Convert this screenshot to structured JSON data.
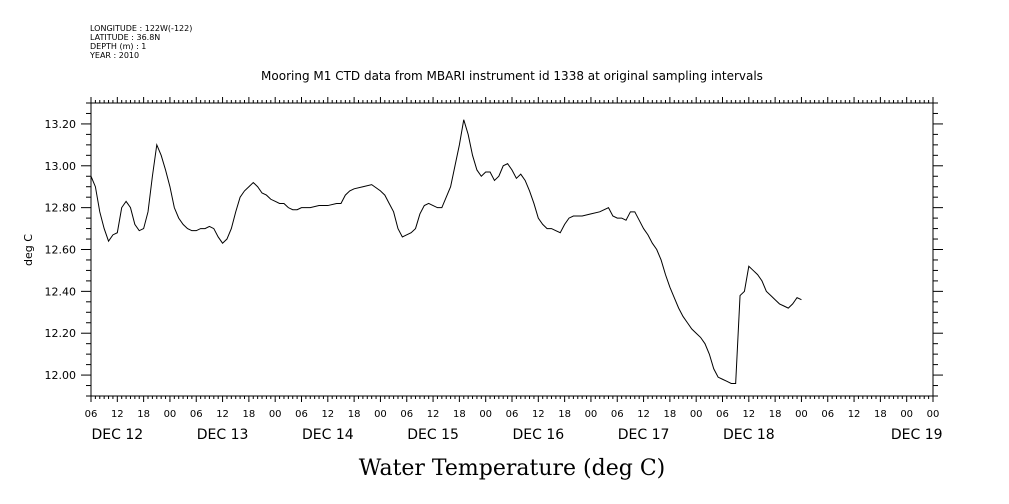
{
  "meta": {
    "longitude": "LONGITUDE : 122W(-122)",
    "latitude": "LATITUDE : 36.8N",
    "depth": "DEPTH (m) : 1",
    "year": "YEAR : 2010"
  },
  "chart_data": {
    "type": "line",
    "title": "Mooring M1 CTD data from MBARI instrument id 1338 at original sampling intervals",
    "xlabel": "Water Temperature (deg C)",
    "ylabel": "deg C",
    "ylim": [
      11.9,
      13.3
    ],
    "yticks": [
      "12.00",
      "12.20",
      "12.40",
      "12.60",
      "12.80",
      "13.00",
      "13.20"
    ],
    "xlim_hours": [
      6,
      198
    ],
    "hour_ticks": [
      "06",
      "12",
      "18",
      "00",
      "06",
      "12",
      "18",
      "00",
      "06",
      "12",
      "18",
      "00",
      "06",
      "12",
      "18",
      "00",
      "06",
      "12",
      "18",
      "00",
      "06",
      "12",
      "18",
      "00",
      "06",
      "12",
      "18",
      "00",
      "06",
      "12",
      "18",
      "00",
      "00"
    ],
    "day_labels": [
      "DEC 12",
      "DEC 13",
      "DEC 14",
      "DEC 15",
      "DEC 16",
      "DEC 17",
      "DEC 18",
      "DEC 19"
    ],
    "grid": false,
    "series": [
      {
        "points": [
          [
            6,
            12.95
          ],
          [
            7,
            12.9
          ],
          [
            8,
            12.78
          ],
          [
            9,
            12.7
          ],
          [
            10,
            12.64
          ],
          [
            11,
            12.67
          ],
          [
            12,
            12.68
          ],
          [
            13,
            12.8
          ],
          [
            14,
            12.83
          ],
          [
            15,
            12.8
          ],
          [
            16,
            12.72
          ],
          [
            17,
            12.69
          ],
          [
            18,
            12.7
          ],
          [
            19,
            12.78
          ],
          [
            20,
            12.95
          ],
          [
            21,
            13.1
          ],
          [
            22,
            13.05
          ],
          [
            23,
            12.98
          ],
          [
            24,
            12.9
          ],
          [
            25,
            12.8
          ],
          [
            26,
            12.75
          ],
          [
            27,
            12.72
          ],
          [
            28,
            12.7
          ],
          [
            29,
            12.69
          ],
          [
            30,
            12.69
          ],
          [
            31,
            12.7
          ],
          [
            32,
            12.7
          ],
          [
            33,
            12.71
          ],
          [
            34,
            12.7
          ],
          [
            35,
            12.66
          ],
          [
            36,
            12.63
          ],
          [
            37,
            12.65
          ],
          [
            38,
            12.7
          ],
          [
            39,
            12.78
          ],
          [
            40,
            12.85
          ],
          [
            41,
            12.88
          ],
          [
            42,
            12.9
          ],
          [
            43,
            12.92
          ],
          [
            44,
            12.9
          ],
          [
            45,
            12.87
          ],
          [
            46,
            12.86
          ],
          [
            47,
            12.84
          ],
          [
            48,
            12.83
          ],
          [
            49,
            12.82
          ],
          [
            50,
            12.82
          ],
          [
            51,
            12.8
          ],
          [
            52,
            12.79
          ],
          [
            53,
            12.79
          ],
          [
            54,
            12.8
          ],
          [
            56,
            12.8
          ],
          [
            58,
            12.81
          ],
          [
            60,
            12.81
          ],
          [
            62,
            12.82
          ],
          [
            63,
            12.82
          ],
          [
            64,
            12.86
          ],
          [
            65,
            12.88
          ],
          [
            66,
            12.89
          ],
          [
            68,
            12.9
          ],
          [
            70,
            12.91
          ],
          [
            72,
            12.88
          ],
          [
            73,
            12.86
          ],
          [
            74,
            12.82
          ],
          [
            75,
            12.78
          ],
          [
            76,
            12.7
          ],
          [
            77,
            12.66
          ],
          [
            78,
            12.67
          ],
          [
            79,
            12.68
          ],
          [
            80,
            12.7
          ],
          [
            81,
            12.77
          ],
          [
            82,
            12.81
          ],
          [
            83,
            12.82
          ],
          [
            84,
            12.81
          ],
          [
            85,
            12.8
          ],
          [
            86,
            12.8
          ],
          [
            87,
            12.85
          ],
          [
            88,
            12.9
          ],
          [
            89,
            13.0
          ],
          [
            90,
            13.1
          ],
          [
            91,
            13.22
          ],
          [
            92,
            13.15
          ],
          [
            93,
            13.05
          ],
          [
            94,
            12.98
          ],
          [
            95,
            12.95
          ],
          [
            96,
            12.97
          ],
          [
            97,
            12.97
          ],
          [
            98,
            12.93
          ],
          [
            99,
            12.95
          ],
          [
            100,
            13.0
          ],
          [
            101,
            13.01
          ],
          [
            102,
            12.98
          ],
          [
            103,
            12.94
          ],
          [
            104,
            12.96
          ],
          [
            105,
            12.93
          ],
          [
            106,
            12.88
          ],
          [
            107,
            12.82
          ],
          [
            108,
            12.75
          ],
          [
            109,
            12.72
          ],
          [
            110,
            12.7
          ],
          [
            111,
            12.7
          ],
          [
            112,
            12.69
          ],
          [
            113,
            12.68
          ],
          [
            114,
            12.72
          ],
          [
            115,
            12.75
          ],
          [
            116,
            12.76
          ],
          [
            118,
            12.76
          ],
          [
            120,
            12.77
          ],
          [
            122,
            12.78
          ],
          [
            124,
            12.8
          ],
          [
            125,
            12.76
          ],
          [
            126,
            12.75
          ],
          [
            127,
            12.75
          ],
          [
            128,
            12.74
          ],
          [
            129,
            12.78
          ],
          [
            130,
            12.78
          ],
          [
            131,
            12.74
          ],
          [
            132,
            12.7
          ],
          [
            133,
            12.67
          ],
          [
            134,
            12.63
          ],
          [
            135,
            12.6
          ],
          [
            136,
            12.55
          ],
          [
            137,
            12.48
          ],
          [
            138,
            12.42
          ],
          [
            139,
            12.37
          ],
          [
            140,
            12.32
          ],
          [
            141,
            12.28
          ],
          [
            142,
            12.25
          ],
          [
            143,
            12.22
          ],
          [
            144,
            12.2
          ],
          [
            145,
            12.18
          ],
          [
            146,
            12.15
          ],
          [
            147,
            12.1
          ],
          [
            148,
            12.03
          ],
          [
            149,
            11.99
          ],
          [
            150,
            11.98
          ],
          [
            151,
            11.97
          ],
          [
            152,
            11.96
          ],
          [
            153,
            11.96
          ],
          [
            154,
            12.38
          ],
          [
            155,
            12.4
          ],
          [
            156,
            12.52
          ],
          [
            157,
            12.5
          ],
          [
            158,
            12.48
          ],
          [
            159,
            12.45
          ],
          [
            160,
            12.4
          ],
          [
            161,
            12.38
          ],
          [
            162,
            12.36
          ],
          [
            163,
            12.34
          ],
          [
            164,
            12.33
          ],
          [
            165,
            12.32
          ],
          [
            166,
            12.34
          ],
          [
            167,
            12.37
          ],
          [
            168,
            12.36
          ]
        ]
      }
    ]
  }
}
